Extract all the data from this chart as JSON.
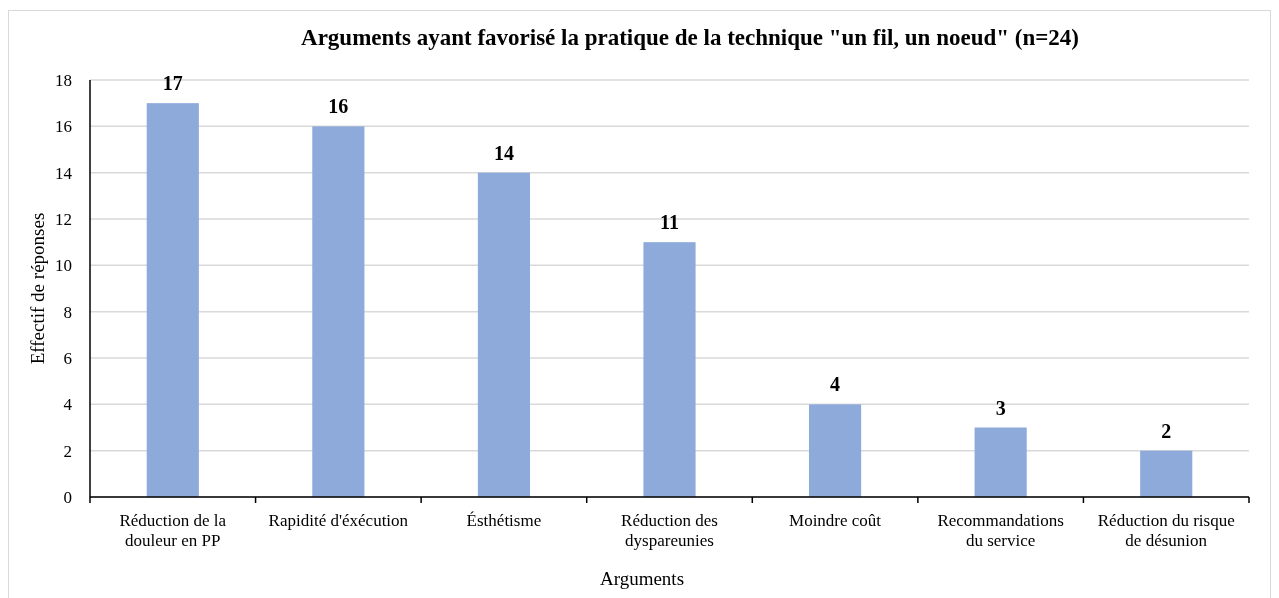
{
  "chart_data": {
    "type": "bar",
    "title": "Arguments ayant favorisé la pratique de la technique \"un fil, un noeud\" (n=24)",
    "xlabel": "Arguments",
    "ylabel": "Effectif de réponses",
    "categories": [
      "Réduction de la douleur en PP",
      "Rapidité d'éxécution",
      "Ésthétisme",
      "Réduction des dyspareunies",
      "Moindre coût",
      "Recommandations du service",
      "Réduction du risque de désunion"
    ],
    "values": [
      17,
      16,
      14,
      11,
      4,
      3,
      2
    ],
    "color": "#8eaadb",
    "ylim": [
      0,
      18
    ],
    "yticks": [
      0,
      2,
      4,
      6,
      8,
      10,
      12,
      14,
      16,
      18
    ],
    "grid": "y",
    "data_labels": true
  }
}
